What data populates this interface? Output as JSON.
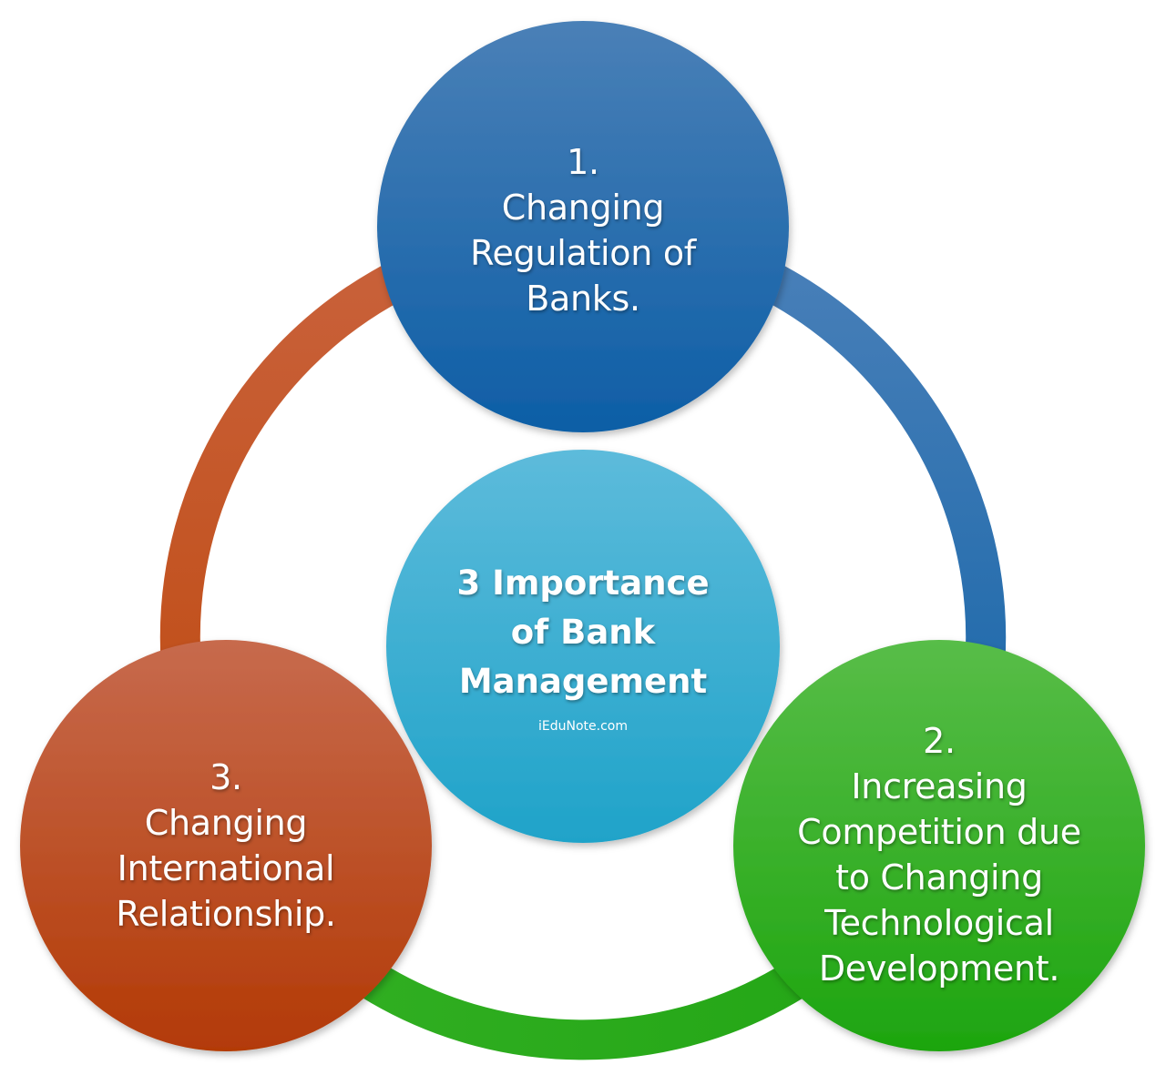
{
  "center": {
    "title_lines": [
      "3 Importance",
      "of Bank",
      "Management"
    ],
    "credit": "iEduNote.com",
    "color": "#34b3d8"
  },
  "nodes": [
    {
      "id": "node1",
      "number": "1.",
      "lines": [
        "Changing",
        "Regulation of",
        "Banks."
      ],
      "color_top": "#4a7fb5",
      "color_bottom": "#0f5fa6"
    },
    {
      "id": "node2",
      "number": "2.",
      "lines": [
        "Increasing",
        "Competition due",
        "to Changing",
        "Technological",
        "Development."
      ],
      "color_top": "#56bb46",
      "color_bottom": "#1fa512"
    },
    {
      "id": "node3",
      "number": "3.",
      "lines": [
        "Changing",
        "International",
        "Relationship."
      ],
      "color_top": "#c6674a",
      "color_bottom": "#b63a08"
    }
  ],
  "ring": {
    "arc_colors": [
      "#3f79b6",
      "#2aa61b",
      "#c4532a"
    ]
  }
}
